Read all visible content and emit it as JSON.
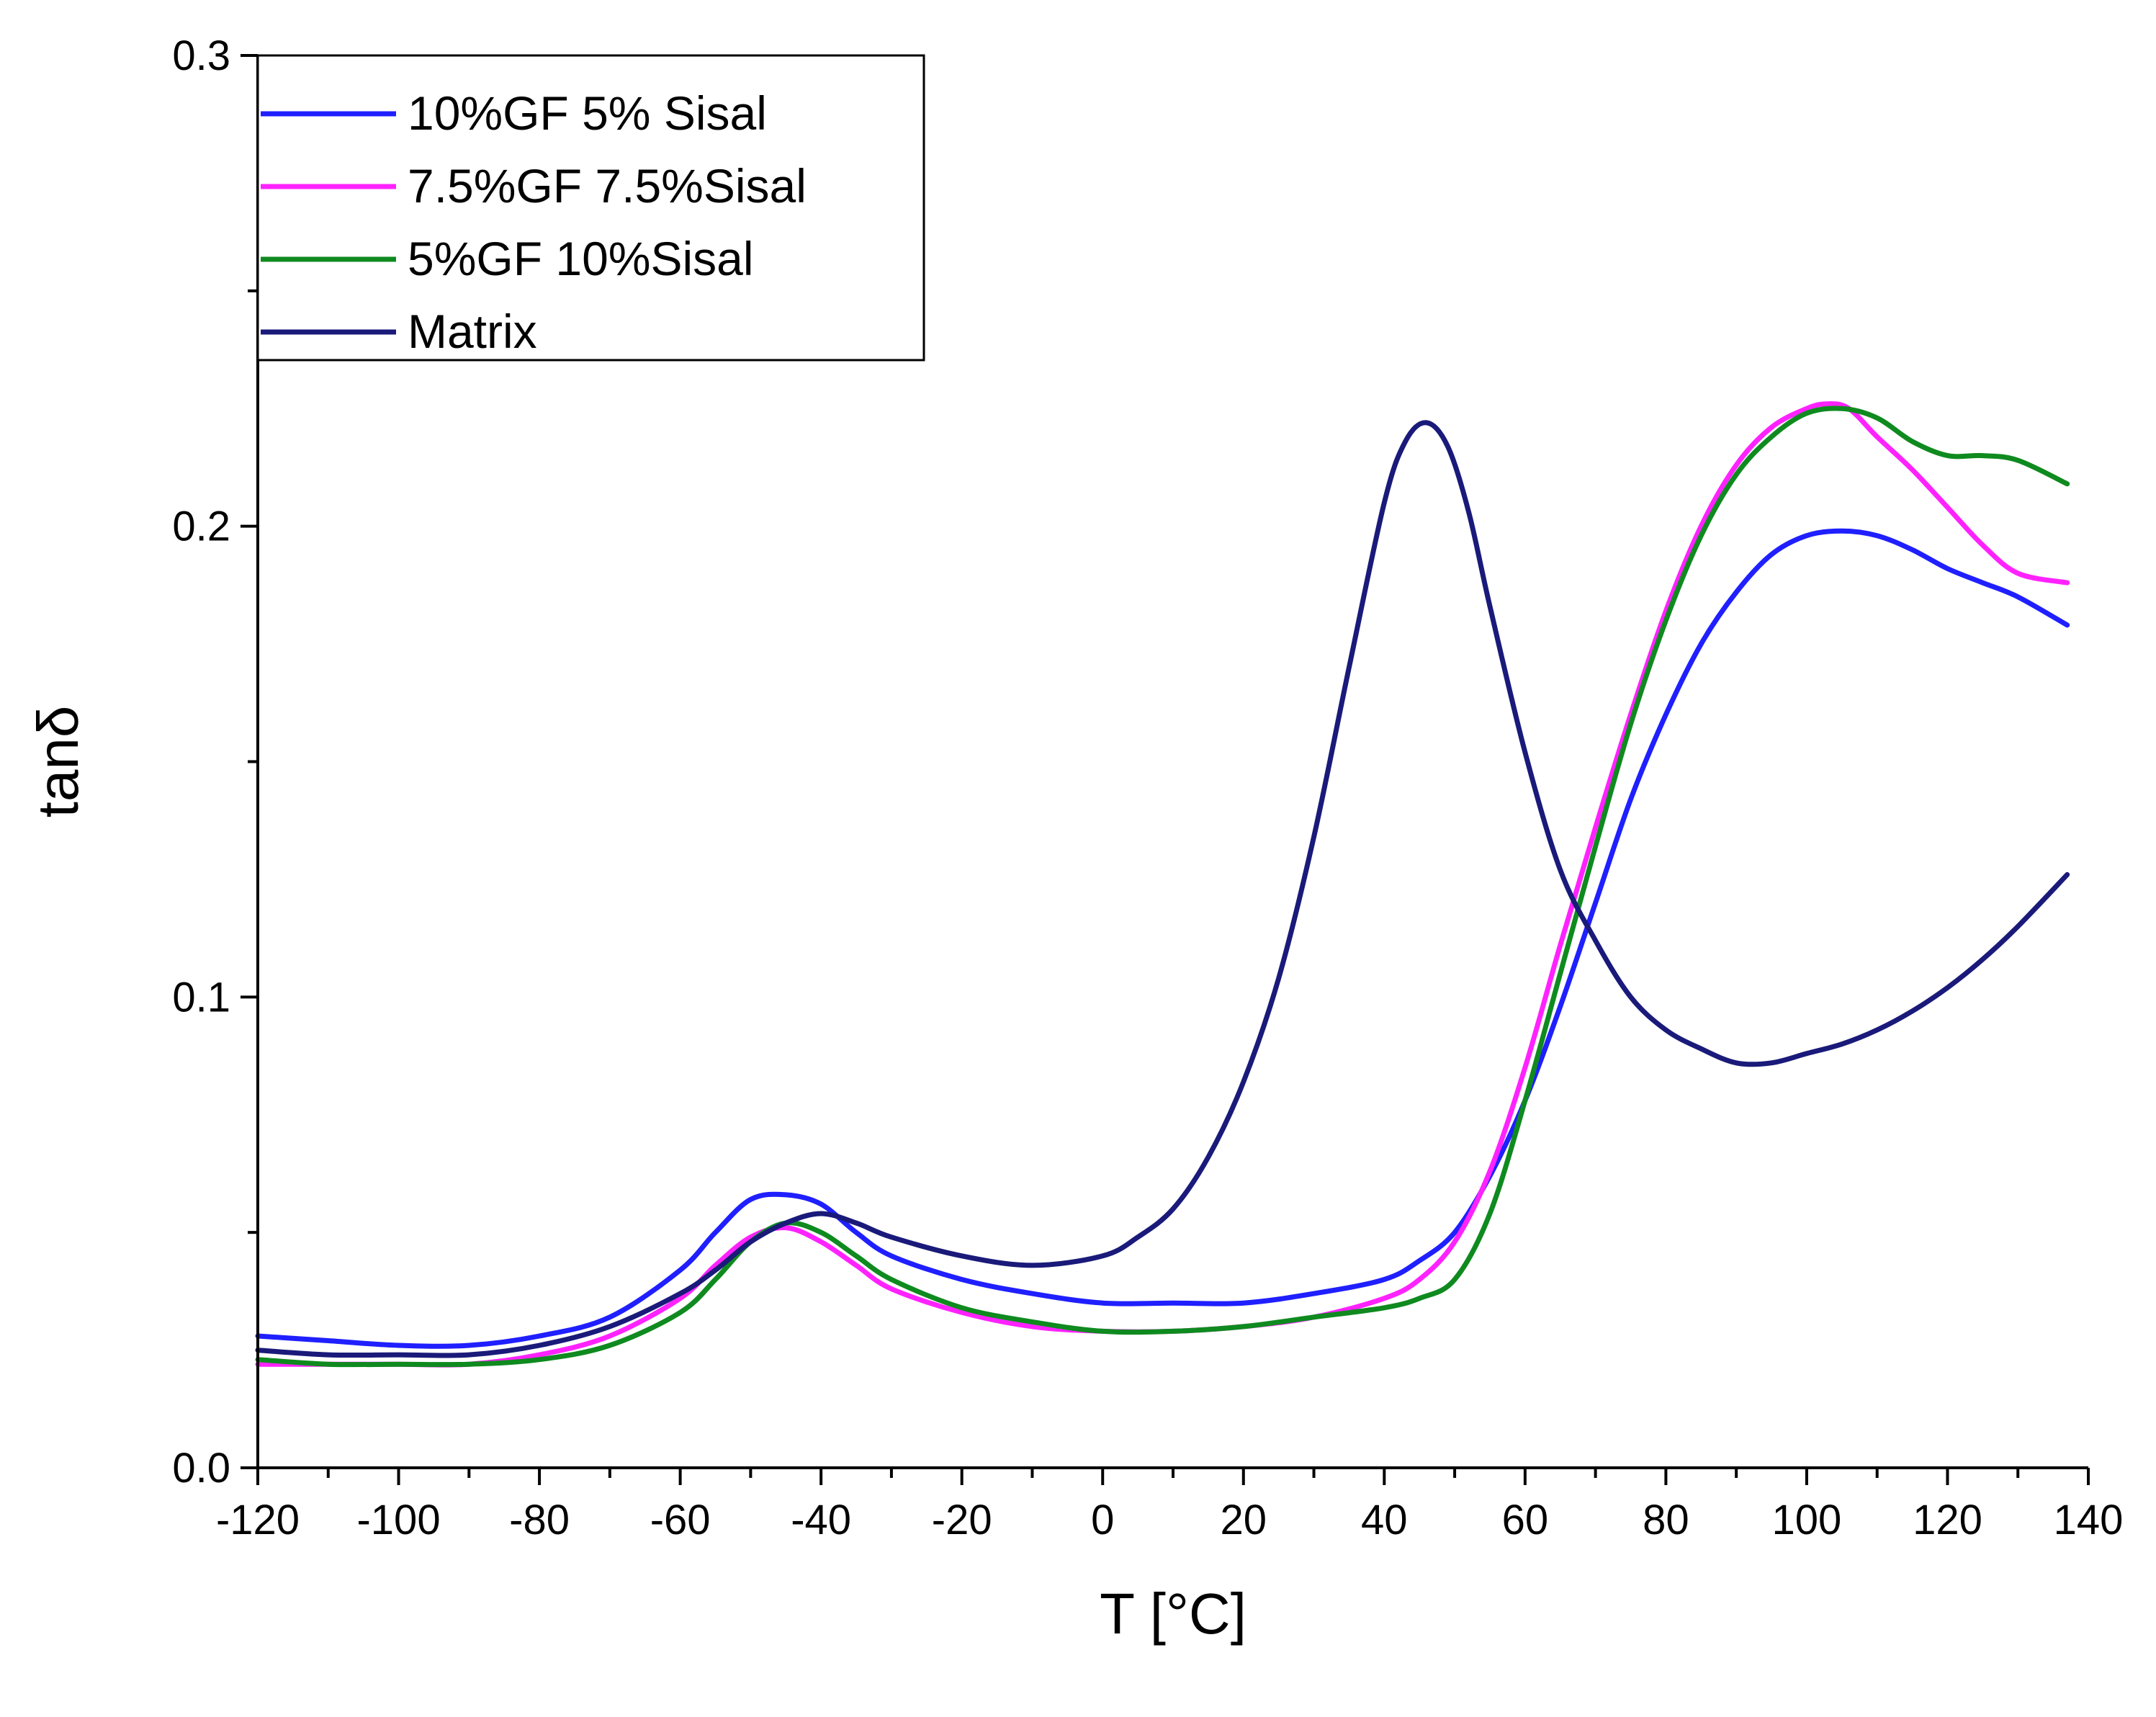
{
  "chart_data": {
    "type": "line",
    "title": "",
    "xlabel": "T [°C]",
    "ylabel": "tanδ",
    "xlim": [
      -120,
      140
    ],
    "ylim": [
      0.0,
      0.3
    ],
    "grid": false,
    "legend_position": "top-left",
    "x_ticks": [
      -120,
      -100,
      -80,
      -60,
      -40,
      -20,
      0,
      20,
      40,
      60,
      80,
      100,
      120,
      140
    ],
    "x_tick_labels": [
      "-120",
      "-100",
      "-80",
      "-60",
      "-40",
      "-20",
      "0",
      "20",
      "40",
      "60",
      "80",
      "100",
      "120",
      "140"
    ],
    "y_ticks": [
      0.0,
      0.1,
      0.2,
      0.3
    ],
    "y_tick_labels": [
      "0.0",
      "0.1",
      "0.2",
      "0.3"
    ],
    "series": [
      {
        "name": "10%GF 5% Sisal",
        "color": "#1f1fff",
        "x": [
          -120,
          -110,
          -100,
          -90,
          -80,
          -70,
          -60,
          -55,
          -50,
          -45,
          -40,
          -35,
          -30,
          -20,
          -10,
          0,
          10,
          20,
          30,
          40,
          45,
          50,
          55,
          60,
          65,
          70,
          75,
          80,
          85,
          90,
          95,
          100,
          105,
          110,
          115,
          120,
          125,
          130,
          137
        ],
        "y": [
          0.028,
          0.027,
          0.026,
          0.026,
          0.028,
          0.032,
          0.042,
          0.05,
          0.057,
          0.058,
          0.056,
          0.05,
          0.045,
          0.04,
          0.037,
          0.035,
          0.035,
          0.035,
          0.037,
          0.04,
          0.044,
          0.05,
          0.062,
          0.078,
          0.098,
          0.12,
          0.142,
          0.16,
          0.175,
          0.186,
          0.194,
          0.198,
          0.199,
          0.198,
          0.195,
          0.191,
          0.188,
          0.185,
          0.179
        ]
      },
      {
        "name": "7.5%GF 7.5%Sisal",
        "color": "#ff22ff",
        "x": [
          -120,
          -110,
          -100,
          -90,
          -80,
          -70,
          -60,
          -55,
          -50,
          -45,
          -40,
          -35,
          -30,
          -20,
          -10,
          0,
          10,
          20,
          30,
          40,
          45,
          50,
          55,
          60,
          65,
          70,
          75,
          80,
          85,
          90,
          95,
          100,
          103,
          106,
          110,
          115,
          120,
          125,
          130,
          137
        ],
        "y": [
          0.022,
          0.022,
          0.022,
          0.022,
          0.024,
          0.028,
          0.036,
          0.043,
          0.049,
          0.051,
          0.048,
          0.043,
          0.038,
          0.033,
          0.03,
          0.029,
          0.029,
          0.03,
          0.032,
          0.036,
          0.04,
          0.048,
          0.063,
          0.085,
          0.111,
          0.136,
          0.16,
          0.182,
          0.2,
          0.213,
          0.221,
          0.225,
          0.226,
          0.225,
          0.219,
          0.212,
          0.204,
          0.196,
          0.19,
          0.188
        ]
      },
      {
        "name": "5%GF 10%Sisal",
        "color": "#0f8a1f",
        "x": [
          -120,
          -110,
          -100,
          -90,
          -80,
          -70,
          -60,
          -55,
          -50,
          -45,
          -40,
          -35,
          -30,
          -20,
          -10,
          0,
          10,
          20,
          30,
          40,
          45,
          50,
          55,
          60,
          65,
          70,
          75,
          80,
          85,
          90,
          95,
          100,
          105,
          110,
          115,
          120,
          125,
          130,
          137
        ],
        "y": [
          0.023,
          0.022,
          0.022,
          0.022,
          0.023,
          0.026,
          0.033,
          0.04,
          0.048,
          0.052,
          0.05,
          0.045,
          0.04,
          0.034,
          0.031,
          0.029,
          0.029,
          0.03,
          0.032,
          0.034,
          0.036,
          0.04,
          0.054,
          0.078,
          0.105,
          0.132,
          0.158,
          0.18,
          0.198,
          0.211,
          0.219,
          0.224,
          0.225,
          0.223,
          0.218,
          0.215,
          0.215,
          0.214,
          0.209
        ]
      },
      {
        "name": "Matrix",
        "color": "#1a1a7a",
        "x": [
          -120,
          -110,
          -100,
          -90,
          -80,
          -70,
          -60,
          -55,
          -50,
          -45,
          -40,
          -35,
          -30,
          -20,
          -10,
          0,
          5,
          10,
          15,
          20,
          25,
          30,
          35,
          40,
          43,
          46,
          49,
          52,
          55,
          60,
          65,
          70,
          75,
          80,
          85,
          90,
          95,
          100,
          105,
          110,
          115,
          120,
          125,
          130,
          137
        ],
        "y": [
          0.025,
          0.024,
          0.024,
          0.024,
          0.026,
          0.03,
          0.037,
          0.042,
          0.048,
          0.052,
          0.054,
          0.052,
          0.049,
          0.045,
          0.043,
          0.045,
          0.049,
          0.055,
          0.066,
          0.082,
          0.104,
          0.134,
          0.17,
          0.205,
          0.218,
          0.222,
          0.217,
          0.203,
          0.183,
          0.152,
          0.127,
          0.112,
          0.1,
          0.093,
          0.089,
          0.086,
          0.086,
          0.088,
          0.09,
          0.093,
          0.097,
          0.102,
          0.108,
          0.115,
          0.126
        ]
      }
    ]
  }
}
